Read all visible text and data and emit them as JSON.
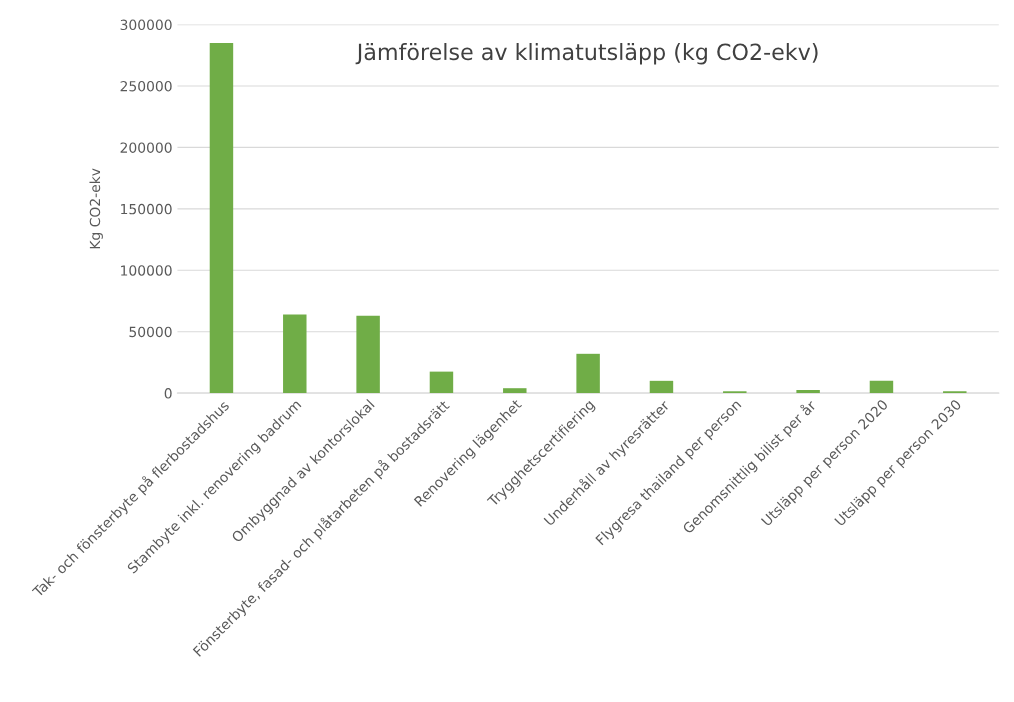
{
  "chart_data": {
    "type": "bar",
    "title": "Jämförelse av klimatutsläpp (kg CO2-ekv)",
    "ylabel": "Kg CO2-ekv",
    "categories": [
      "Tak- och fönsterbyte på flerbostadshus",
      "Stambyte inkl. renovering badrum",
      "Ombyggnad av kontorslokal",
      "Fönsterbyte, fasad- och plåtarbeten på bostadsrätt",
      "Renovering lägenhet",
      "Trygghetscertifiering",
      "Underhåll av hyresrätter",
      "Flygresa thailand per person",
      "Genomsnittlig bilist per år",
      "Utsläpp per person 2020",
      "Utsläpp per person 2030"
    ],
    "values": [
      285000,
      64000,
      63000,
      17500,
      4000,
      32000,
      10000,
      1500,
      2500,
      10000,
      1500
    ],
    "color": "#70ad47",
    "ylim": [
      0,
      300000
    ],
    "yticks": [
      0,
      50000,
      100000,
      150000,
      200000,
      250000,
      300000
    ],
    "grid": "y",
    "legend": false
  }
}
